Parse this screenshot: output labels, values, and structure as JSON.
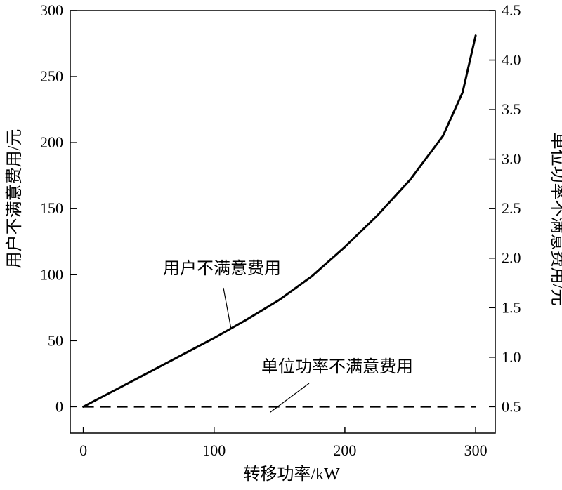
{
  "chart_data": {
    "type": "line",
    "xlabel": "转移功率/kW",
    "ylabel_left": "用户不满意费用/元",
    "ylabel_right": "单位功率不满意费用/元",
    "xlim": [
      -10,
      315
    ],
    "ylim_left": [
      -20,
      300
    ],
    "ylim_right": [
      0.5,
      4.5
    ],
    "x_ticks": [
      0,
      100,
      200,
      300
    ],
    "y_ticks_left": [
      0,
      50,
      100,
      150,
      200,
      250,
      300
    ],
    "y_ticks_right": [
      0.5,
      1.0,
      1.5,
      2.0,
      2.5,
      3.0,
      3.5,
      4.0,
      4.5
    ],
    "x_tick_labels": [
      "0",
      "100",
      "200",
      "300"
    ],
    "y_tick_labels_left": [
      "0",
      "50",
      "100",
      "150",
      "200",
      "250",
      "300"
    ],
    "y_tick_labels_right": [
      "0.5",
      "1.0",
      "1.5",
      "2.0",
      "2.5",
      "3.0",
      "3.5",
      "4.0",
      "4.5"
    ],
    "grid": false,
    "legend": "none",
    "series": [
      {
        "name": "用户不满意费用",
        "axis": "left",
        "style": "solid",
        "x": [
          0,
          25,
          50,
          75,
          100,
          125,
          150,
          175,
          200,
          225,
          250,
          275,
          290,
          300
        ],
        "y": [
          0,
          13,
          26,
          39,
          52,
          66,
          81,
          99,
          121,
          145,
          172,
          205,
          238,
          281
        ]
      },
      {
        "name": "单位功率不满意费用",
        "axis": "right",
        "style": "dashed",
        "x": [
          0,
          300
        ],
        "y": [
          0.5,
          0.5
        ]
      }
    ],
    "annotations": [
      {
        "text": "用户不满意费用",
        "series": "用户不满意费用",
        "target_x": 115,
        "target_y": 65
      },
      {
        "text": "单位功率不满意费用",
        "series": "单位功率不满意费用",
        "target_x": 145,
        "target_y": 0.5
      }
    ]
  }
}
